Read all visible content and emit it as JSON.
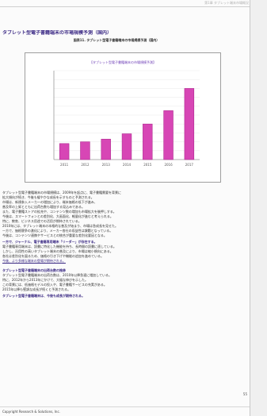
{
  "document": {
    "header": "第1章 タブレット端末市場概況",
    "section_title": "タブレット型電子書籍端末の市場規模予測（国内）",
    "figure_caption": "図表11. タブレット型電子書籍端末の市場規模予測（国内）",
    "chart_title": "【タブレット型電子書籍端末の市場規模予測】",
    "paragraphs": [
      "タブレット型電子書籍端末の市場規模は、2009年を起点に、電子書籍需要を背景に",
      "拡大傾向が続き、今後も緩やかな成長を示すものと予測される。",
      "市場は、新規参入メーカーの増加により、端末価格の低下が進み、",
      "普及率の上昇とともに出荷台数も増加する見込みである。",
      "また、電子書籍ストアの拡充や、コンテンツ数の増加も市場拡大を後押しする。",
      "今後は、スマートフォンとの差別化、大画面化、軽量化が進むと考えられる。",
      "特に、教育、ビジネス用途での活用が期待されている。",
      "2010年には、タブレット端末の本格的な普及が始まり、市場は急成長を見せた。",
      "一方で、価格競争の激化により、メーカー各社の収益性は課題となっている。",
      "今後は、コンテンツ連携やサービスとの統合が重要な差別化要因となる。"
    ],
    "highlight_1": "一方で、ジャーナル、電子書籍専用端末「リーダー」が存在する。",
    "paragraphs_2": [
      "電子書籍専用端末は、読書に特化した機能を持ち、長時間の読書に適している。",
      "しかし、汎用性の高いタブレット端末の普及により、市場は縮小傾向にある。",
      "各社は差別化を図るため、価格の引き下げや機能の追加を進めている。"
    ],
    "underline_text": "今後、より多様な端末の登場が期待される。",
    "highlight_2": "タブレット型電子書籍端末の出荷台数の推移",
    "paragraphs_3": [
      "タブレット型電子書籍端末の出荷台数は、2010年以降急速に増加している。",
      "特に、2012年から2013年にかけて、大幅な伸びを示した。",
      "この背景には、低価格モデルの投入や、電子書籍サービスの充実がある。",
      "2015年以降も堅調な成長が続くと予測される。"
    ],
    "highlight_3": "タブレット型電子書籍端末は、今後も成長が期待される。",
    "page_number": "55",
    "footer": "Copyright Research & Solutions, Inc."
  },
  "chart_data": {
    "type": "bar",
    "title": "【タブレット型電子書籍端末の市場規模予測】",
    "categories": [
      "2011",
      "2012",
      "2013",
      "2014",
      "2015",
      "2016",
      "2017"
    ],
    "values": [
      18,
      20,
      23,
      29,
      40,
      55,
      80
    ],
    "ylim": [
      0,
      100
    ],
    "grid": true,
    "bar_color": "#d746b5"
  }
}
